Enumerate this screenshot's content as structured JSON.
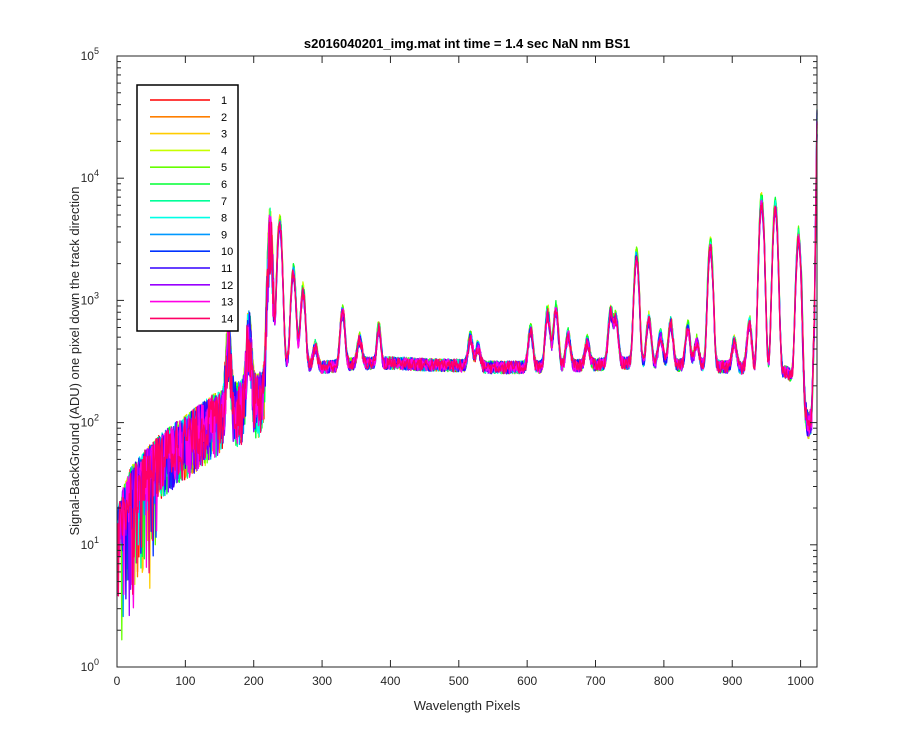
{
  "chart_data": {
    "type": "line",
    "title": "s2016040201_img.mat int time = 1.4 sec  NaN nm BS1",
    "xlabel": "Wavelength Pixels",
    "ylabel": "Signal-BackGround (ADU) one pixel down the track direction",
    "xlim": [
      0,
      1024
    ],
    "ylim": [
      1,
      100000
    ],
    "yscale": "log",
    "grid": false,
    "legend_position": "top-left",
    "x_ticks": [
      "0",
      "100",
      "200",
      "300",
      "400",
      "500",
      "600",
      "700",
      "800",
      "900",
      "1000"
    ],
    "y_ticks": [
      {
        "base": "10",
        "exp": "0"
      },
      {
        "base": "10",
        "exp": "1"
      },
      {
        "base": "10",
        "exp": "2"
      },
      {
        "base": "10",
        "exp": "3"
      },
      {
        "base": "10",
        "exp": "4"
      },
      {
        "base": "10",
        "exp": "5"
      }
    ],
    "baseline": [
      [
        0,
        12
      ],
      [
        10,
        20
      ],
      [
        20,
        28
      ],
      [
        40,
        38
      ],
      [
        60,
        50
      ],
      [
        80,
        62
      ],
      [
        100,
        75
      ],
      [
        120,
        90
      ],
      [
        140,
        110
      ],
      [
        160,
        125
      ],
      [
        175,
        140
      ],
      [
        190,
        150
      ],
      [
        210,
        170
      ],
      [
        222,
        190
      ],
      [
        232,
        240
      ],
      [
        245,
        300
      ],
      [
        260,
        330
      ],
      [
        280,
        290
      ],
      [
        300,
        285
      ],
      [
        350,
        305
      ],
      [
        400,
        310
      ],
      [
        450,
        300
      ],
      [
        500,
        295
      ],
      [
        550,
        285
      ],
      [
        600,
        285
      ],
      [
        650,
        290
      ],
      [
        700,
        300
      ],
      [
        750,
        310
      ],
      [
        800,
        300
      ],
      [
        850,
        295
      ],
      [
        900,
        285
      ],
      [
        950,
        270
      ],
      [
        980,
        260
      ],
      [
        995,
        220
      ],
      [
        1005,
        130
      ],
      [
        1012,
        95
      ],
      [
        1016,
        110
      ],
      [
        1020,
        600
      ],
      [
        1024,
        30000
      ]
    ],
    "peaks": [
      [
        163,
        450,
        3
      ],
      [
        193,
        580,
        3
      ],
      [
        224,
        3600,
        3
      ],
      [
        238,
        4300,
        3
      ],
      [
        258,
        1700,
        3
      ],
      [
        272,
        1200,
        3
      ],
      [
        290,
        420,
        3
      ],
      [
        330,
        820,
        3
      ],
      [
        355,
        480,
        3
      ],
      [
        383,
        600,
        2.5
      ],
      [
        517,
        500,
        3
      ],
      [
        528,
        420,
        3
      ],
      [
        605,
        580,
        3
      ],
      [
        630,
        800,
        3
      ],
      [
        642,
        850,
        3
      ],
      [
        660,
        520,
        3
      ],
      [
        688,
        460,
        3
      ],
      [
        722,
        800,
        3
      ],
      [
        730,
        700,
        3
      ],
      [
        760,
        2300,
        3
      ],
      [
        778,
        700,
        3
      ],
      [
        795,
        520,
        3
      ],
      [
        810,
        660,
        3
      ],
      [
        835,
        600,
        3
      ],
      [
        848,
        460,
        3
      ],
      [
        868,
        2800,
        3
      ],
      [
        903,
        460,
        3
      ],
      [
        925,
        650,
        3
      ],
      [
        943,
        6500,
        3
      ],
      [
        963,
        5800,
        3
      ],
      [
        997,
        3300,
        3
      ]
    ],
    "series": [
      {
        "name": "1",
        "color": "#ff0000",
        "scale": 1.0
      },
      {
        "name": "2",
        "color": "#ff7f00",
        "scale": 1.02
      },
      {
        "name": "3",
        "color": "#ffcc00",
        "scale": 1.06
      },
      {
        "name": "4",
        "color": "#c8ff00",
        "scale": 1.09
      },
      {
        "name": "5",
        "color": "#66ff00",
        "scale": 1.11
      },
      {
        "name": "6",
        "color": "#00ff33",
        "scale": 1.08
      },
      {
        "name": "7",
        "color": "#00ff99",
        "scale": 1.04
      },
      {
        "name": "8",
        "color": "#00ffe6",
        "scale": 1.01
      },
      {
        "name": "9",
        "color": "#0099ff",
        "scale": 0.98
      },
      {
        "name": "10",
        "color": "#0033ff",
        "scale": 0.95
      },
      {
        "name": "11",
        "color": "#3300ff",
        "scale": 0.93
      },
      {
        "name": "12",
        "color": "#9900ff",
        "scale": 0.94
      },
      {
        "name": "13",
        "color": "#ff00e6",
        "scale": 0.96
      },
      {
        "name": "14",
        "color": "#ff0066",
        "scale": 0.97
      }
    ]
  }
}
